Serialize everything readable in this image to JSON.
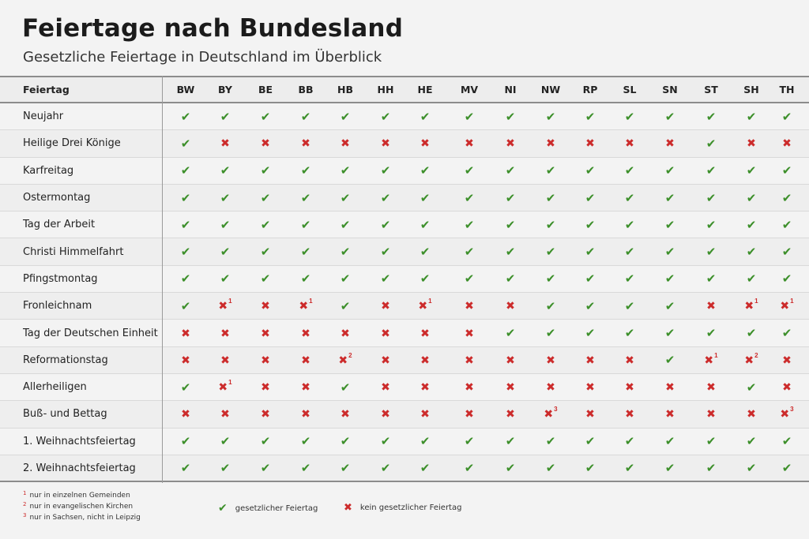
{
  "title": "Feiertage nach Bundesland",
  "subtitle": "Gesetzliche Feiertage in Deutschland im Überblick",
  "header_label": "Feiertag",
  "states": [
    "BW",
    "BY",
    "BE",
    "BB",
    "HB",
    "HH",
    "HE",
    "MV",
    "NI",
    "NW",
    "RP",
    "SL",
    "SN",
    "ST",
    "SH",
    "TH"
  ],
  "holidays": [
    {
      "name": "Neujahr",
      "values": [
        "y",
        "y",
        "y",
        "y",
        "y",
        "y",
        "y",
        "y",
        "y",
        "y",
        "y",
        "y",
        "y",
        "y",
        "y",
        "y"
      ]
    },
    {
      "name": "Heilige Drei Könige",
      "values": [
        "y",
        "n",
        "n",
        "n",
        "n",
        "n",
        "n",
        "n",
        "n",
        "n",
        "n",
        "n",
        "n",
        "y",
        "n",
        "n"
      ]
    },
    {
      "name": "Karfreitag",
      "values": [
        "y",
        "y",
        "y",
        "y",
        "y",
        "y",
        "y",
        "y",
        "y",
        "y",
        "y",
        "y",
        "y",
        "y",
        "y",
        "y"
      ]
    },
    {
      "name": "Ostermontag",
      "values": [
        "y",
        "y",
        "y",
        "y",
        "y",
        "y",
        "y",
        "y",
        "y",
        "y",
        "y",
        "y",
        "y",
        "y",
        "y",
        "y"
      ]
    },
    {
      "name": "Tag der Arbeit",
      "values": [
        "y",
        "y",
        "y",
        "y",
        "y",
        "y",
        "y",
        "y",
        "y",
        "y",
        "y",
        "y",
        "y",
        "y",
        "y",
        "y"
      ]
    },
    {
      "name": "Christi Himmelfahrt",
      "values": [
        "y",
        "y",
        "y",
        "y",
        "y",
        "y",
        "y",
        "y",
        "y",
        "y",
        "y",
        "y",
        "y",
        "y",
        "y",
        "y"
      ]
    },
    {
      "name": "Pfingstmontag",
      "values": [
        "y",
        "y",
        "y",
        "y",
        "y",
        "y",
        "y",
        "y",
        "y",
        "y",
        "y",
        "y",
        "y",
        "y",
        "y",
        "y"
      ]
    },
    {
      "name": "Fronleichnam",
      "values": [
        "y",
        "n1",
        "n",
        "n1",
        "y",
        "n",
        "n1",
        "n",
        "n",
        "y",
        "y",
        "y",
        "y",
        "n",
        "n1",
        "n1"
      ]
    },
    {
      "name": "Tag der Deutschen Einheit",
      "values": [
        "n",
        "n",
        "n",
        "n",
        "n",
        "n",
        "n",
        "n",
        "y",
        "y",
        "y",
        "y",
        "y",
        "y",
        "y",
        "y"
      ]
    },
    {
      "name": "Reformationstag",
      "values": [
        "n",
        "n",
        "n",
        "n",
        "n2",
        "n",
        "n",
        "n",
        "n",
        "n",
        "n",
        "n",
        "y",
        "n1",
        "n2",
        "n"
      ]
    },
    {
      "name": "Allerheiligen",
      "values": [
        "y",
        "n1",
        "n",
        "n",
        "y",
        "n",
        "n",
        "n",
        "n",
        "n",
        "n",
        "n",
        "n",
        "n",
        "y",
        "n"
      ]
    },
    {
      "name": "Buß- und Bettag",
      "values": [
        "n",
        "n",
        "n",
        "n",
        "n",
        "n",
        "n",
        "n",
        "n",
        "n3",
        "n",
        "n",
        "n",
        "n",
        "n",
        "n3"
      ]
    },
    {
      "name": "1. Weihnachtsfeiertag",
      "values": [
        "y",
        "y",
        "y",
        "y",
        "y",
        "y",
        "y",
        "y",
        "y",
        "y",
        "y",
        "y",
        "y",
        "y",
        "y",
        "y"
      ]
    },
    {
      "name": "2. Weihnachtsfeiertag",
      "values": [
        "y",
        "y",
        "y",
        "y",
        "y",
        "y",
        "y",
        "y",
        "y",
        "y",
        "y",
        "y",
        "y",
        "y",
        "y",
        "y"
      ]
    }
  ],
  "symbols": {
    "yes": "✔",
    "no": "✖"
  },
  "footnotes": [
    {
      "num": "1",
      "text": "nur in einzelnen Gemeinden"
    },
    {
      "num": "2",
      "text": "nur in evangelischen Kirchen"
    },
    {
      "num": "3",
      "text": "nur in Sachsen, nicht in Leipzig"
    }
  ],
  "legend": {
    "yes_label": "gesetzlicher Feiertag",
    "no_label": "kein gesetzlicher Feiertag"
  },
  "colors": {
    "yes": "#3c8f2a",
    "no": "#cc2b2b"
  }
}
